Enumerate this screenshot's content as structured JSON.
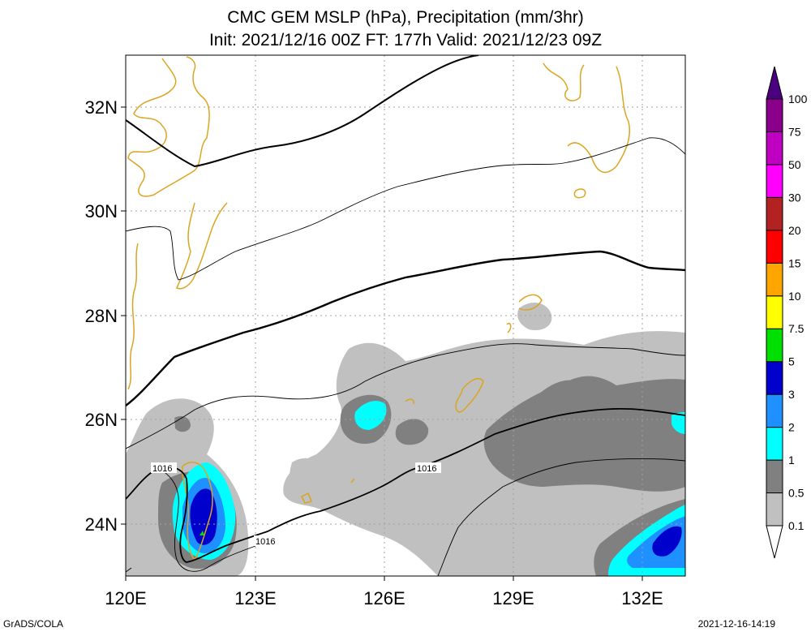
{
  "title": {
    "line1": "CMC GEM MSLP (hPa), Precipitation (mm/3hr)",
    "line2": "Init: 2021/12/16 00Z  FT: 177h  Valid: 2021/12/23 09Z"
  },
  "axes": {
    "lon_labels": [
      "120E",
      "123E",
      "126E",
      "129E",
      "132E"
    ],
    "lat_labels": [
      "32N",
      "30N",
      "28N",
      "26N",
      "24N"
    ],
    "lon_range": [
      120,
      133
    ],
    "lat_range": [
      23,
      33
    ]
  },
  "colorbar": {
    "labels": [
      "0.1",
      "0.5",
      "1",
      "2",
      "3",
      "5",
      "7.5",
      "10",
      "15",
      "20",
      "30",
      "50",
      "75",
      "100"
    ],
    "colors": [
      "#c0c0c0",
      "#808080",
      "#00ffff",
      "#1e90ff",
      "#0000cd",
      "#00e000",
      "#ffff00",
      "#ffa500",
      "#ff0000",
      "#b22222",
      "#ff00ff",
      "#c000c0",
      "#8b008b",
      "#4b0082"
    ]
  },
  "isobar_labels": [
    "1016",
    "1016",
    "1016"
  ],
  "footer": {
    "credit": "GrADS/COLA",
    "timestamp": "2021-12-16-14:19"
  }
}
